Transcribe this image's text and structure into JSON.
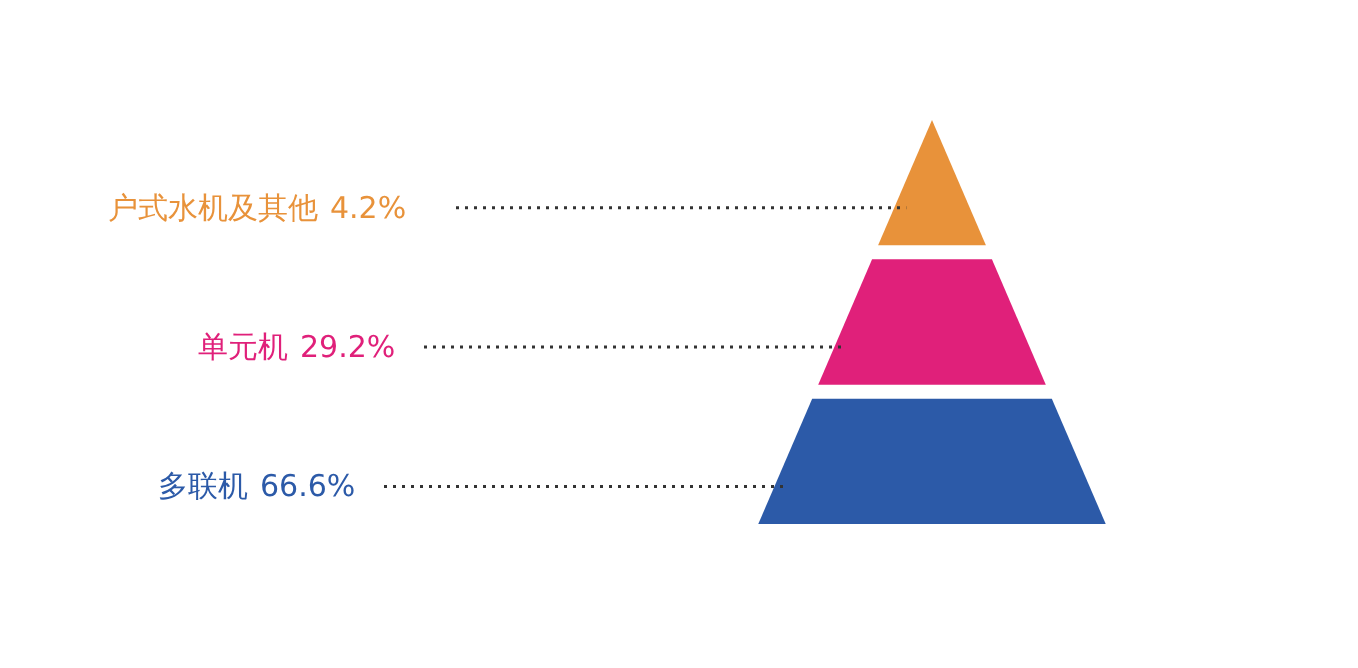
{
  "chart_data": {
    "type": "other",
    "categories": [
      "户式水机及其他",
      "单元机",
      "多联机"
    ],
    "values": [
      4.2,
      29.2,
      66.6
    ],
    "value_labels": [
      "4.2%",
      "29.2%",
      "66.6%"
    ],
    "colors": [
      "#e8923a",
      "#e0207a",
      "#2c5aa8"
    ]
  }
}
